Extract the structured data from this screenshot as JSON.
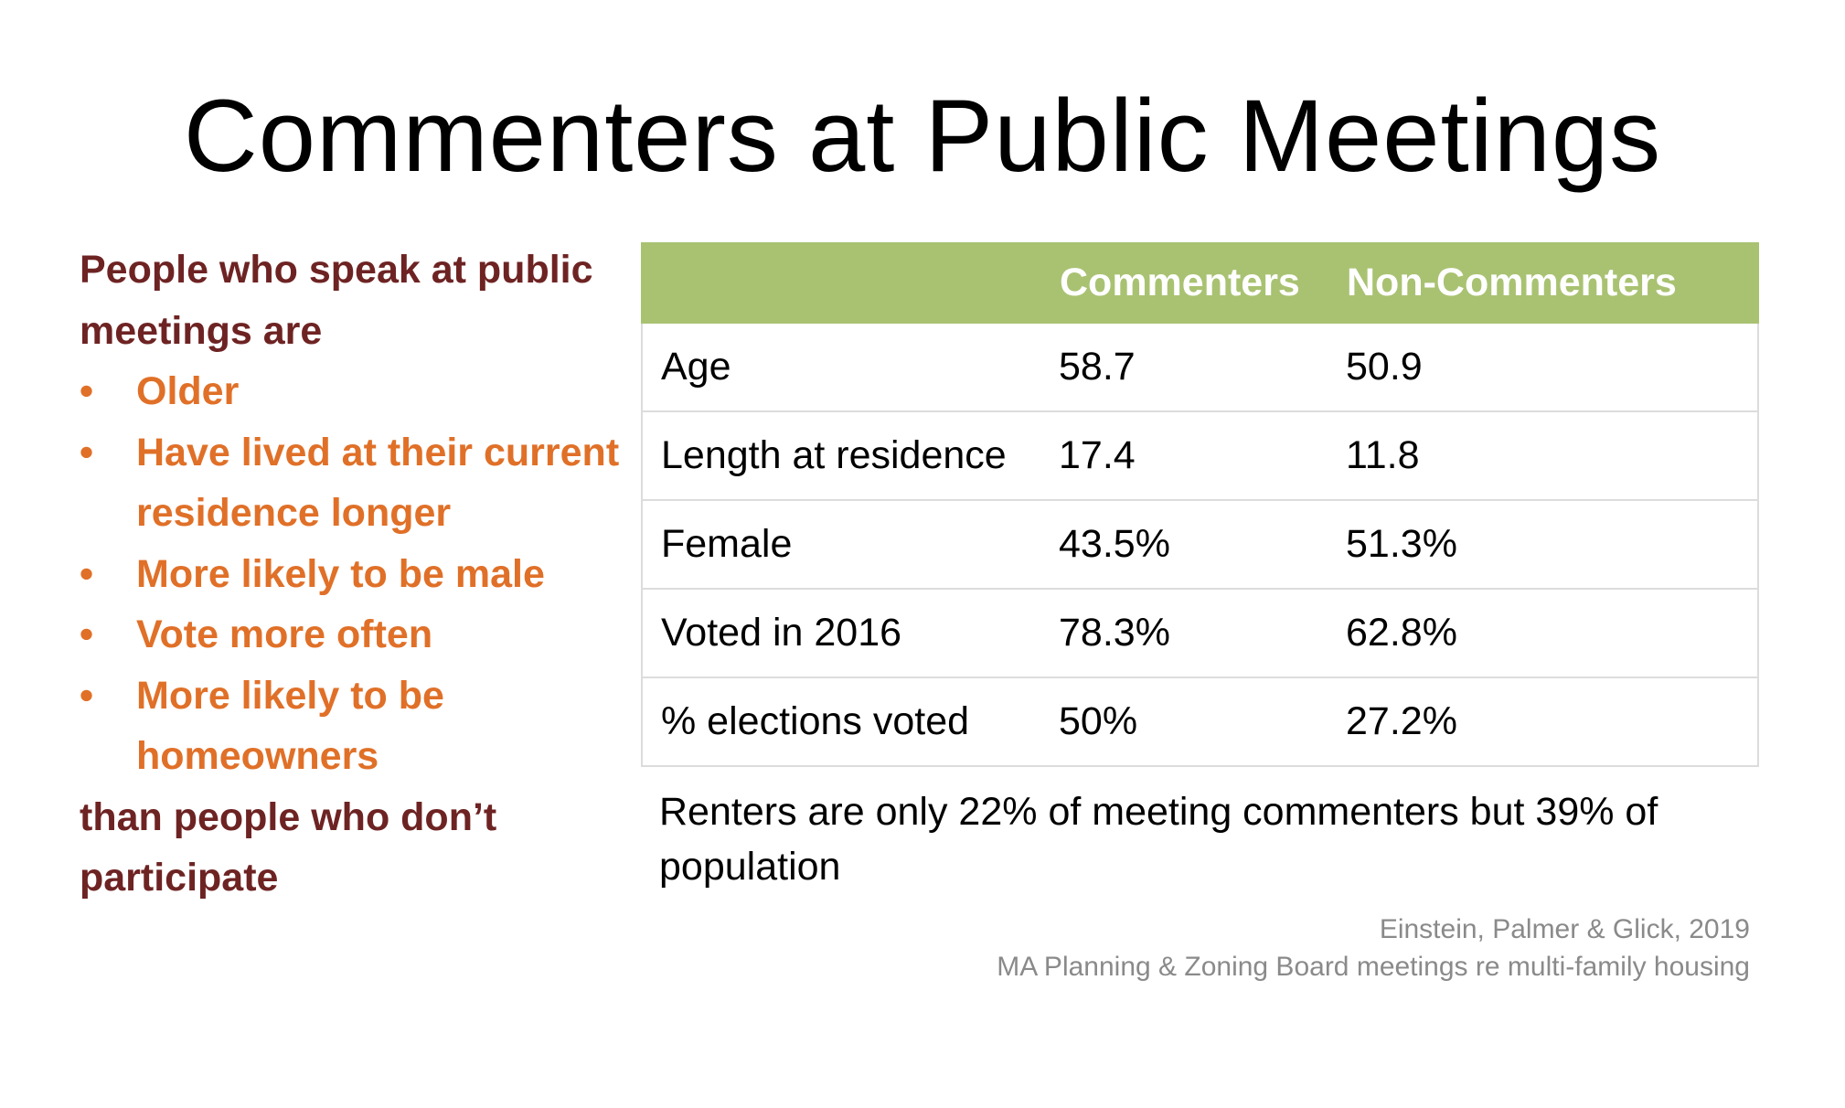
{
  "title": "Commenters at Public Meetings",
  "left": {
    "intro": "People who speak at public meetings are",
    "bullets": [
      "Older",
      "Have lived at their current residence longer",
      "More likely to be male",
      "Vote more often",
      "More likely to be homeowners"
    ],
    "outro": "than people who don’t participate"
  },
  "table": {
    "headers": [
      "",
      "Commenters",
      "Non-Commenters"
    ],
    "rows": [
      [
        "Age",
        "58.7",
        "50.9"
      ],
      [
        "Length at residence",
        "17.4",
        "11.8"
      ],
      [
        "Female",
        "43.5%",
        "51.3%"
      ],
      [
        "Voted in 2016",
        "78.3%",
        "62.8%"
      ],
      [
        "% elections voted",
        "50%",
        "27.2%"
      ]
    ],
    "colors": {
      "header_bg": "#a9c272",
      "header_text": "#ffffff",
      "border": "#dcdcdc"
    }
  },
  "note": "Renters are only 22% of meeting commenters but 39% of population",
  "source": {
    "line1": "Einstein, Palmer & Glick, 2019",
    "line2": "MA Planning & Zoning Board meetings re multi-family housing"
  },
  "colors": {
    "intro_text": "#6e2323",
    "bullet_text": "#e07028"
  }
}
